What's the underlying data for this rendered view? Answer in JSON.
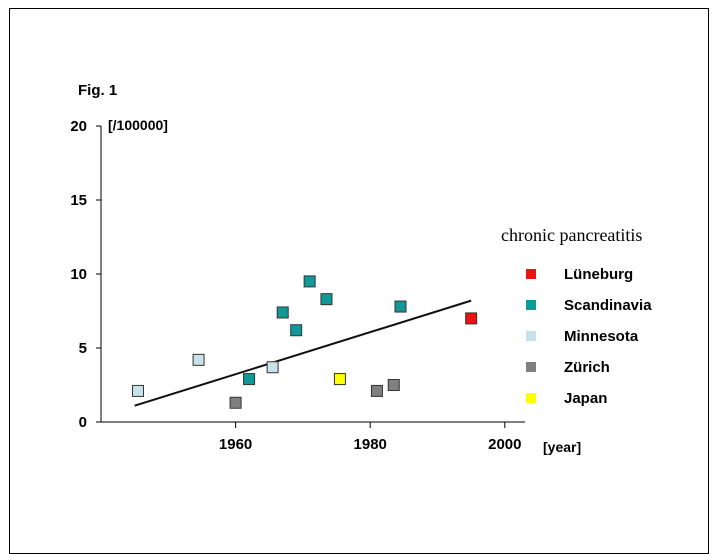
{
  "figure_label": "Fig. 1",
  "chart_data": {
    "type": "scatter",
    "ylabel": "[/100000]",
    "xlabel": "[year]",
    "xlim": [
      1940,
      2003
    ],
    "ylim": [
      0,
      20
    ],
    "x_ticks": [
      1960,
      1980,
      2000
    ],
    "y_ticks": [
      0,
      5,
      10,
      15,
      20
    ],
    "grid": false,
    "legend": {
      "title": "chronic pancreatitis",
      "placement": "right"
    },
    "series": [
      {
        "name": "Lüneburg",
        "color": "#ee1111",
        "points": [
          [
            1995,
            7.0
          ]
        ]
      },
      {
        "name": "Scandinavia",
        "color": "#119999",
        "points": [
          [
            1962,
            2.9
          ],
          [
            1967,
            7.4
          ],
          [
            1969,
            6.2
          ],
          [
            1971,
            9.5
          ],
          [
            1973.5,
            8.3
          ],
          [
            1984.5,
            7.8
          ]
        ]
      },
      {
        "name": "Minnesota",
        "color": "#c8e2ea",
        "points": [
          [
            1945.5,
            2.1
          ],
          [
            1954.5,
            4.2
          ],
          [
            1965.5,
            3.7
          ]
        ]
      },
      {
        "name": "Zürich",
        "color": "#808080",
        "points": [
          [
            1960,
            1.3
          ],
          [
            1981,
            2.1
          ],
          [
            1983.5,
            2.5
          ]
        ]
      },
      {
        "name": "Japan",
        "color": "#ffff00",
        "points": [
          [
            1975.5,
            2.9
          ]
        ]
      }
    ],
    "trendline": {
      "x": [
        1945,
        1995
      ],
      "y": [
        1.1,
        8.2
      ]
    }
  }
}
